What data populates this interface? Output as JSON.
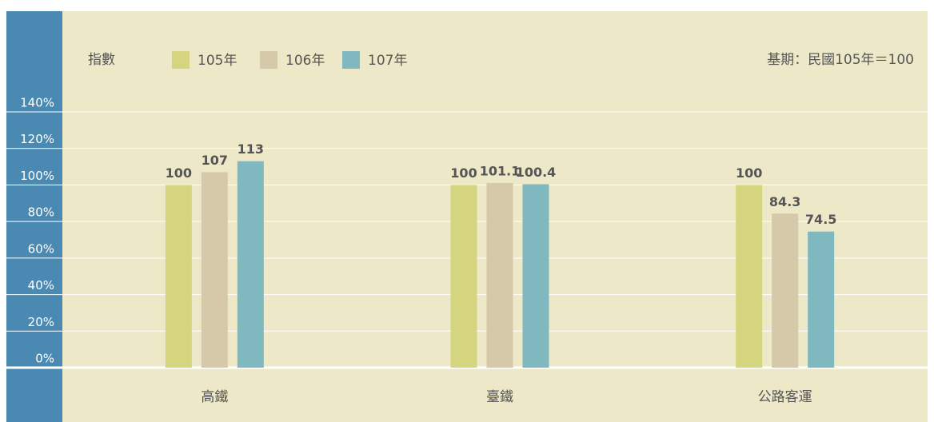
{
  "chart_data": {
    "type": "bar",
    "y_label": "指數",
    "note": "基期：民國105年＝100",
    "categories": [
      "高鐵",
      "臺鐵",
      "公路客運"
    ],
    "series": [
      {
        "name": "105年",
        "color": "#d4d57e",
        "values": [
          100,
          100,
          100
        ]
      },
      {
        "name": "106年",
        "color": "#d6c9a9",
        "values": [
          107,
          101.1,
          84.3
        ]
      },
      {
        "name": "107年",
        "color": "#80b8bf",
        "values": [
          113,
          100.4,
          74.5
        ]
      }
    ],
    "ylim": [
      0,
      140
    ],
    "yticks": [
      {
        "value": 0,
        "label": "0%"
      },
      {
        "value": 20,
        "label": "20%"
      },
      {
        "value": 40,
        "label": "40%"
      },
      {
        "value": 60,
        "label": "60%"
      },
      {
        "value": 80,
        "label": "80%"
      },
      {
        "value": 100,
        "label": "100%"
      },
      {
        "value": 120,
        "label": "120%"
      },
      {
        "value": 140,
        "label": "140%"
      }
    ],
    "grid": true
  }
}
